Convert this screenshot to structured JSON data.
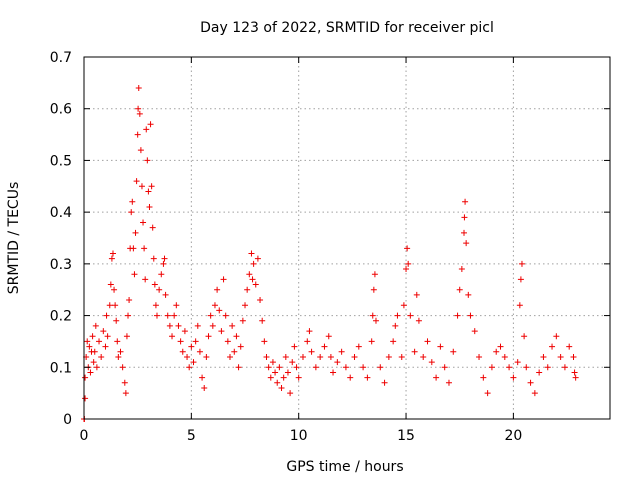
{
  "chart_data": {
    "type": "scatter",
    "title": "Day 123 of 2022, SRMTID for receiver picl",
    "xlabel": "GPS time / hours",
    "ylabel": "SRMTID / TECUs",
    "xlim": [
      0,
      24.5
    ],
    "ylim": [
      0,
      0.7
    ],
    "xticks": [
      0,
      5,
      10,
      15,
      20
    ],
    "yticks": [
      0,
      0.1,
      0.2,
      0.3,
      0.4,
      0.5,
      0.6,
      0.7
    ],
    "xtick_labels": [
      "0",
      "5",
      "10",
      "15",
      "20"
    ],
    "ytick_labels": [
      "0",
      "0.1",
      "0.2",
      "0.3",
      "0.4",
      "0.5",
      "0.6",
      "0.7"
    ],
    "grid": true,
    "marker": "+",
    "color": "#ee0000",
    "series": [
      {
        "name": "SRMTID",
        "points": [
          [
            0.0,
            0.0
          ],
          [
            0.02,
            0.0
          ],
          [
            0.05,
            0.04
          ],
          [
            0.05,
            0.08
          ],
          [
            0.1,
            0.12
          ],
          [
            0.15,
            0.15
          ],
          [
            0.2,
            0.1
          ],
          [
            0.25,
            0.14
          ],
          [
            0.3,
            0.09
          ],
          [
            0.35,
            0.13
          ],
          [
            0.4,
            0.16
          ],
          [
            0.45,
            0.11
          ],
          [
            0.5,
            0.13
          ],
          [
            0.55,
            0.18
          ],
          [
            0.6,
            0.1
          ],
          [
            0.7,
            0.15
          ],
          [
            0.8,
            0.12
          ],
          [
            0.9,
            0.17
          ],
          [
            1.0,
            0.14
          ],
          [
            1.05,
            0.2
          ],
          [
            1.1,
            0.16
          ],
          [
            1.2,
            0.22
          ],
          [
            1.25,
            0.26
          ],
          [
            1.3,
            0.31
          ],
          [
            1.35,
            0.32
          ],
          [
            1.4,
            0.25
          ],
          [
            1.45,
            0.22
          ],
          [
            1.5,
            0.19
          ],
          [
            1.55,
            0.15
          ],
          [
            1.6,
            0.12
          ],
          [
            1.7,
            0.13
          ],
          [
            1.8,
            0.1
          ],
          [
            1.9,
            0.07
          ],
          [
            1.95,
            0.05
          ],
          [
            2.0,
            0.16
          ],
          [
            2.05,
            0.2
          ],
          [
            2.1,
            0.23
          ],
          [
            2.15,
            0.33
          ],
          [
            2.2,
            0.4
          ],
          [
            2.25,
            0.42
          ],
          [
            2.3,
            0.33
          ],
          [
            2.35,
            0.28
          ],
          [
            2.4,
            0.36
          ],
          [
            2.45,
            0.46
          ],
          [
            2.5,
            0.55
          ],
          [
            2.52,
            0.6
          ],
          [
            2.55,
            0.64
          ],
          [
            2.6,
            0.59
          ],
          [
            2.65,
            0.52
          ],
          [
            2.7,
            0.45
          ],
          [
            2.75,
            0.38
          ],
          [
            2.8,
            0.33
          ],
          [
            2.85,
            0.27
          ],
          [
            2.9,
            0.56
          ],
          [
            2.95,
            0.5
          ],
          [
            3.0,
            0.44
          ],
          [
            3.05,
            0.41
          ],
          [
            3.1,
            0.57
          ],
          [
            3.15,
            0.45
          ],
          [
            3.2,
            0.37
          ],
          [
            3.25,
            0.31
          ],
          [
            3.3,
            0.26
          ],
          [
            3.35,
            0.22
          ],
          [
            3.4,
            0.2
          ],
          [
            3.5,
            0.25
          ],
          [
            3.6,
            0.28
          ],
          [
            3.7,
            0.3
          ],
          [
            3.75,
            0.31
          ],
          [
            3.8,
            0.24
          ],
          [
            3.9,
            0.2
          ],
          [
            4.0,
            0.18
          ],
          [
            4.1,
            0.16
          ],
          [
            4.2,
            0.2
          ],
          [
            4.3,
            0.22
          ],
          [
            4.4,
            0.18
          ],
          [
            4.5,
            0.15
          ],
          [
            4.6,
            0.13
          ],
          [
            4.7,
            0.17
          ],
          [
            4.8,
            0.12
          ],
          [
            4.9,
            0.1
          ],
          [
            5.0,
            0.14
          ],
          [
            5.1,
            0.11
          ],
          [
            5.2,
            0.15
          ],
          [
            5.3,
            0.18
          ],
          [
            5.4,
            0.13
          ],
          [
            5.5,
            0.08
          ],
          [
            5.6,
            0.06
          ],
          [
            5.7,
            0.12
          ],
          [
            5.8,
            0.16
          ],
          [
            5.9,
            0.2
          ],
          [
            6.0,
            0.18
          ],
          [
            6.1,
            0.22
          ],
          [
            6.2,
            0.25
          ],
          [
            6.3,
            0.21
          ],
          [
            6.4,
            0.17
          ],
          [
            6.5,
            0.27
          ],
          [
            6.6,
            0.2
          ],
          [
            6.7,
            0.15
          ],
          [
            6.8,
            0.12
          ],
          [
            6.9,
            0.18
          ],
          [
            7.0,
            0.13
          ],
          [
            7.1,
            0.16
          ],
          [
            7.2,
            0.1
          ],
          [
            7.3,
            0.14
          ],
          [
            7.4,
            0.19
          ],
          [
            7.5,
            0.22
          ],
          [
            7.6,
            0.25
          ],
          [
            7.7,
            0.28
          ],
          [
            7.8,
            0.32
          ],
          [
            7.85,
            0.27
          ],
          [
            7.9,
            0.3
          ],
          [
            8.0,
            0.26
          ],
          [
            8.1,
            0.31
          ],
          [
            8.2,
            0.23
          ],
          [
            8.3,
            0.19
          ],
          [
            8.4,
            0.15
          ],
          [
            8.5,
            0.12
          ],
          [
            8.6,
            0.1
          ],
          [
            8.7,
            0.08
          ],
          [
            8.8,
            0.11
          ],
          [
            8.9,
            0.09
          ],
          [
            9.0,
            0.07
          ],
          [
            9.1,
            0.1
          ],
          [
            9.2,
            0.06
          ],
          [
            9.3,
            0.08
          ],
          [
            9.4,
            0.12
          ],
          [
            9.5,
            0.09
          ],
          [
            9.6,
            0.05
          ],
          [
            9.7,
            0.11
          ],
          [
            9.8,
            0.14
          ],
          [
            9.9,
            0.1
          ],
          [
            10.0,
            0.08
          ],
          [
            10.2,
            0.12
          ],
          [
            10.4,
            0.15
          ],
          [
            10.5,
            0.17
          ],
          [
            10.6,
            0.13
          ],
          [
            10.8,
            0.1
          ],
          [
            11.0,
            0.12
          ],
          [
            11.2,
            0.14
          ],
          [
            11.4,
            0.16
          ],
          [
            11.5,
            0.12
          ],
          [
            11.6,
            0.09
          ],
          [
            11.8,
            0.11
          ],
          [
            12.0,
            0.13
          ],
          [
            12.2,
            0.1
          ],
          [
            12.4,
            0.08
          ],
          [
            12.6,
            0.12
          ],
          [
            12.8,
            0.14
          ],
          [
            13.0,
            0.1
          ],
          [
            13.2,
            0.08
          ],
          [
            13.4,
            0.15
          ],
          [
            13.45,
            0.2
          ],
          [
            13.5,
            0.25
          ],
          [
            13.55,
            0.28
          ],
          [
            13.6,
            0.19
          ],
          [
            13.8,
            0.1
          ],
          [
            14.0,
            0.07
          ],
          [
            14.2,
            0.12
          ],
          [
            14.4,
            0.15
          ],
          [
            14.5,
            0.18
          ],
          [
            14.6,
            0.2
          ],
          [
            14.8,
            0.12
          ],
          [
            14.9,
            0.22
          ],
          [
            15.0,
            0.29
          ],
          [
            15.05,
            0.33
          ],
          [
            15.1,
            0.3
          ],
          [
            15.2,
            0.2
          ],
          [
            15.4,
            0.13
          ],
          [
            15.5,
            0.24
          ],
          [
            15.6,
            0.19
          ],
          [
            15.8,
            0.12
          ],
          [
            16.0,
            0.15
          ],
          [
            16.2,
            0.11
          ],
          [
            16.4,
            0.08
          ],
          [
            16.6,
            0.14
          ],
          [
            16.8,
            0.1
          ],
          [
            17.0,
            0.07
          ],
          [
            17.2,
            0.13
          ],
          [
            17.4,
            0.2
          ],
          [
            17.5,
            0.25
          ],
          [
            17.6,
            0.29
          ],
          [
            17.7,
            0.36
          ],
          [
            17.72,
            0.39
          ],
          [
            17.75,
            0.42
          ],
          [
            17.8,
            0.34
          ],
          [
            17.9,
            0.24
          ],
          [
            18.0,
            0.2
          ],
          [
            18.2,
            0.17
          ],
          [
            18.4,
            0.12
          ],
          [
            18.6,
            0.08
          ],
          [
            18.8,
            0.05
          ],
          [
            19.0,
            0.1
          ],
          [
            19.2,
            0.13
          ],
          [
            19.4,
            0.14
          ],
          [
            19.6,
            0.12
          ],
          [
            19.8,
            0.1
          ],
          [
            20.0,
            0.08
          ],
          [
            20.2,
            0.11
          ],
          [
            20.3,
            0.22
          ],
          [
            20.35,
            0.27
          ],
          [
            20.4,
            0.3
          ],
          [
            20.5,
            0.16
          ],
          [
            20.6,
            0.1
          ],
          [
            20.8,
            0.07
          ],
          [
            21.0,
            0.05
          ],
          [
            21.2,
            0.09
          ],
          [
            21.4,
            0.12
          ],
          [
            21.6,
            0.1
          ],
          [
            21.8,
            0.14
          ],
          [
            22.0,
            0.16
          ],
          [
            22.2,
            0.12
          ],
          [
            22.4,
            0.1
          ],
          [
            22.6,
            0.14
          ],
          [
            22.8,
            0.12
          ],
          [
            22.85,
            0.09
          ],
          [
            22.9,
            0.08
          ]
        ]
      }
    ]
  }
}
